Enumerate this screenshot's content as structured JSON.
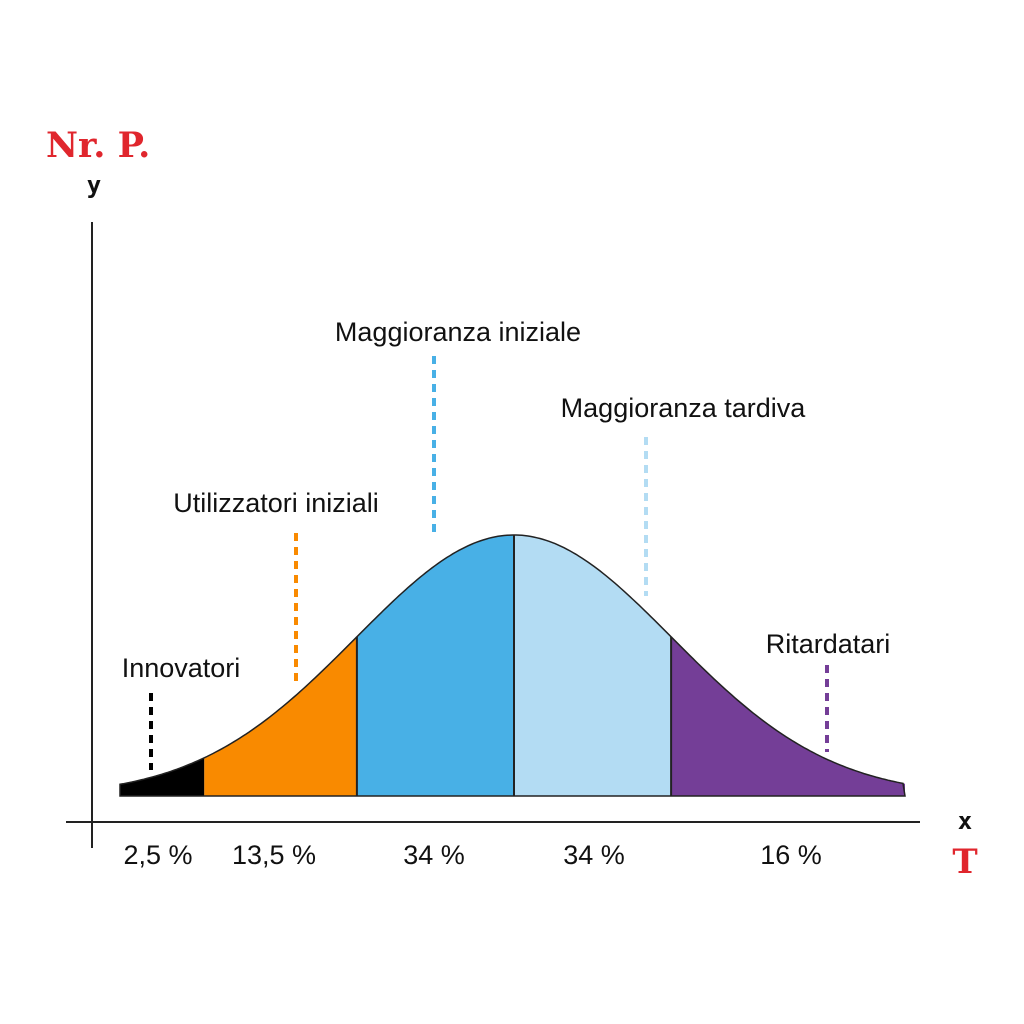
{
  "colors": {
    "innovators": "#000000",
    "early_adopters": "#f98a00",
    "early_majority": "#48b0e6",
    "late_majority": "#b3dcf3",
    "laggards": "#743e97",
    "accent_red": "#e0262d",
    "axis": "#222222"
  },
  "axis": {
    "y_title": "Nr. P.",
    "y_letter": "y",
    "x_letter": "x",
    "x_title": "T"
  },
  "chart_data": {
    "type": "area",
    "distribution": "normal",
    "segments": [
      {
        "label": "Innovatori",
        "percent_label": "2,5 %",
        "value": 2.5,
        "color": "#000000"
      },
      {
        "label": "Utilizzatori iniziali",
        "percent_label": "13,5 %",
        "value": 13.5,
        "color": "#f98a00"
      },
      {
        "label": "Maggioranza iniziale",
        "percent_label": "34 %",
        "value": 34,
        "color": "#48b0e6"
      },
      {
        "label": "Maggioranza tardiva",
        "percent_label": "34 %",
        "value": 34,
        "color": "#b3dcf3"
      },
      {
        "label": "Ritardatari",
        "percent_label": "16 %",
        "value": 16,
        "color": "#743e97"
      }
    ],
    "ylabel": "Nr. P.",
    "xlabel": "T",
    "grid": false,
    "legend": "none"
  }
}
